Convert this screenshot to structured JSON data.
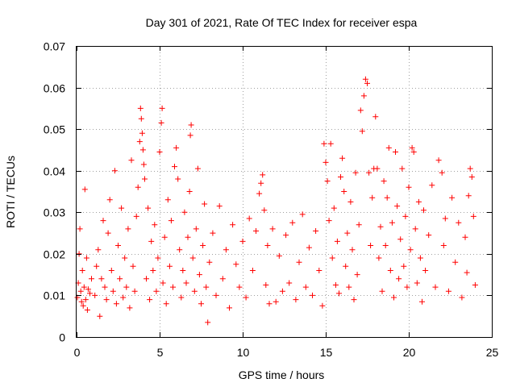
{
  "chart_data": {
    "type": "scatter",
    "title": "Day 301 of 2021, Rate Of TEC Index for receiver espa",
    "xlabel": "GPS time / hours",
    "ylabel": "ROTI / TECUs",
    "xlim": [
      0,
      25
    ],
    "ylim": [
      0,
      0.07
    ],
    "x_ticks": [
      0,
      5,
      10,
      15,
      20,
      25
    ],
    "x_tick_labels": [
      "0",
      "5",
      "10",
      "15",
      "20",
      "25"
    ],
    "y_ticks": [
      0,
      0.01,
      0.02,
      0.03,
      0.04,
      0.05,
      0.06,
      0.07
    ],
    "y_tick_labels": [
      "0",
      "0.01",
      "0.02",
      "0.03",
      "0.04",
      "0.05",
      "0.06",
      "0.07"
    ],
    "grid": true,
    "marker": "+",
    "series": [
      {
        "name": "ROTI",
        "color": "#ff0000",
        "points": [
          [
            0.05,
            0.0095
          ],
          [
            0.1,
            0.013
          ],
          [
            0.15,
            0.02
          ],
          [
            0.2,
            0.026
          ],
          [
            0.25,
            0.011
          ],
          [
            0.3,
            0.0085
          ],
          [
            0.35,
            0.016
          ],
          [
            0.4,
            0.0075
          ],
          [
            0.45,
            0.012
          ],
          [
            0.5,
            0.0355
          ],
          [
            0.55,
            0.009
          ],
          [
            0.6,
            0.019
          ],
          [
            0.65,
            0.0065
          ],
          [
            0.7,
            0.0115
          ],
          [
            0.8,
            0.0105
          ],
          [
            0.9,
            0.014
          ],
          [
            1.1,
            0.01
          ],
          [
            1.2,
            0.017
          ],
          [
            1.3,
            0.021
          ],
          [
            1.4,
            0.005
          ],
          [
            1.5,
            0.014
          ],
          [
            1.6,
            0.028
          ],
          [
            1.7,
            0.012
          ],
          [
            1.8,
            0.009
          ],
          [
            1.9,
            0.025
          ],
          [
            2.0,
            0.033
          ],
          [
            2.1,
            0.016
          ],
          [
            2.2,
            0.011
          ],
          [
            2.3,
            0.04
          ],
          [
            2.4,
            0.008
          ],
          [
            2.5,
            0.022
          ],
          [
            2.6,
            0.014
          ],
          [
            2.7,
            0.031
          ],
          [
            2.8,
            0.0095
          ],
          [
            2.9,
            0.019
          ],
          [
            3.0,
            0.012
          ],
          [
            3.1,
            0.026
          ],
          [
            3.2,
            0.007
          ],
          [
            3.3,
            0.0425
          ],
          [
            3.4,
            0.017
          ],
          [
            3.5,
            0.011
          ],
          [
            3.6,
            0.029
          ],
          [
            3.7,
            0.036
          ],
          [
            3.8,
            0.047
          ],
          [
            3.85,
            0.055
          ],
          [
            3.9,
            0.0525
          ],
          [
            3.95,
            0.049
          ],
          [
            4.0,
            0.045
          ],
          [
            4.05,
            0.0415
          ],
          [
            4.1,
            0.038
          ],
          [
            4.2,
            0.014
          ],
          [
            4.3,
            0.031
          ],
          [
            4.4,
            0.009
          ],
          [
            4.5,
            0.023
          ],
          [
            4.6,
            0.016
          ],
          [
            4.7,
            0.027
          ],
          [
            4.8,
            0.011
          ],
          [
            4.9,
            0.019
          ],
          [
            5.0,
            0.0445
          ],
          [
            5.1,
            0.0515
          ],
          [
            5.15,
            0.055
          ],
          [
            5.2,
            0.013
          ],
          [
            5.3,
            0.024
          ],
          [
            5.4,
            0.008
          ],
          [
            5.5,
            0.033
          ],
          [
            5.6,
            0.017
          ],
          [
            5.7,
            0.028
          ],
          [
            5.8,
            0.012
          ],
          [
            5.9,
            0.041
          ],
          [
            6.0,
            0.0455
          ],
          [
            6.1,
            0.038
          ],
          [
            6.2,
            0.021
          ],
          [
            6.3,
            0.0095
          ],
          [
            6.4,
            0.016
          ],
          [
            6.5,
            0.03
          ],
          [
            6.6,
            0.013
          ],
          [
            6.7,
            0.024
          ],
          [
            6.8,
            0.035
          ],
          [
            6.85,
            0.0485
          ],
          [
            6.9,
            0.051
          ],
          [
            7.0,
            0.019
          ],
          [
            7.1,
            0.011
          ],
          [
            7.2,
            0.026
          ],
          [
            7.3,
            0.0405
          ],
          [
            7.4,
            0.015
          ],
          [
            7.5,
            0.008
          ],
          [
            7.6,
            0.022
          ],
          [
            7.7,
            0.032
          ],
          [
            7.8,
            0.012
          ],
          [
            7.9,
            0.0035
          ],
          [
            8.0,
            0.018
          ],
          [
            8.2,
            0.025
          ],
          [
            8.4,
            0.01
          ],
          [
            8.6,
            0.0315
          ],
          [
            8.8,
            0.014
          ],
          [
            9.0,
            0.021
          ],
          [
            9.2,
            0.007
          ],
          [
            9.4,
            0.027
          ],
          [
            9.6,
            0.0175
          ],
          [
            9.8,
            0.012
          ],
          [
            10.0,
            0.023
          ],
          [
            10.2,
            0.0095
          ],
          [
            10.4,
            0.0285
          ],
          [
            10.6,
            0.016
          ],
          [
            10.8,
            0.0255
          ],
          [
            11.0,
            0.0345
          ],
          [
            11.1,
            0.037
          ],
          [
            11.2,
            0.039
          ],
          [
            11.3,
            0.0305
          ],
          [
            11.4,
            0.0125
          ],
          [
            11.5,
            0.022
          ],
          [
            11.6,
            0.008
          ],
          [
            11.8,
            0.026
          ],
          [
            12.0,
            0.0085
          ],
          [
            12.2,
            0.0195
          ],
          [
            12.4,
            0.011
          ],
          [
            12.6,
            0.0245
          ],
          [
            12.8,
            0.013
          ],
          [
            13.0,
            0.0275
          ],
          [
            13.2,
            0.009
          ],
          [
            13.4,
            0.018
          ],
          [
            13.6,
            0.0295
          ],
          [
            13.8,
            0.012
          ],
          [
            14.0,
            0.0215
          ],
          [
            14.2,
            0.01
          ],
          [
            14.4,
            0.0255
          ],
          [
            14.6,
            0.016
          ],
          [
            14.8,
            0.0075
          ],
          [
            14.9,
            0.0465
          ],
          [
            15.0,
            0.042
          ],
          [
            15.1,
            0.0375
          ],
          [
            15.2,
            0.028
          ],
          [
            15.3,
            0.0465
          ],
          [
            15.4,
            0.019
          ],
          [
            15.5,
            0.031
          ],
          [
            15.6,
            0.0125
          ],
          [
            15.7,
            0.023
          ],
          [
            15.8,
            0.0105
          ],
          [
            15.9,
            0.0385
          ],
          [
            16.0,
            0.043
          ],
          [
            16.1,
            0.035
          ],
          [
            16.2,
            0.017
          ],
          [
            16.3,
            0.025
          ],
          [
            16.4,
            0.012
          ],
          [
            16.5,
            0.0325
          ],
          [
            16.6,
            0.021
          ],
          [
            16.7,
            0.009
          ],
          [
            16.8,
            0.0395
          ],
          [
            16.9,
            0.015
          ],
          [
            17.0,
            0.027
          ],
          [
            17.1,
            0.0545
          ],
          [
            17.2,
            0.0495
          ],
          [
            17.3,
            0.058
          ],
          [
            17.4,
            0.062
          ],
          [
            17.5,
            0.061
          ],
          [
            17.6,
            0.0395
          ],
          [
            17.7,
            0.022
          ],
          [
            17.8,
            0.0335
          ],
          [
            17.9,
            0.0405
          ],
          [
            18.0,
            0.053
          ],
          [
            18.1,
            0.0405
          ],
          [
            18.2,
            0.019
          ],
          [
            18.3,
            0.0265
          ],
          [
            18.4,
            0.011
          ],
          [
            18.5,
            0.0375
          ],
          [
            18.6,
            0.022
          ],
          [
            18.7,
            0.0335
          ],
          [
            18.8,
            0.0455
          ],
          [
            18.9,
            0.016
          ],
          [
            19.0,
            0.0275
          ],
          [
            19.1,
            0.0095
          ],
          [
            19.2,
            0.0445
          ],
          [
            19.3,
            0.0315
          ],
          [
            19.4,
            0.014
          ],
          [
            19.5,
            0.0235
          ],
          [
            19.6,
            0.0405
          ],
          [
            19.7,
            0.017
          ],
          [
            19.8,
            0.029
          ],
          [
            19.9,
            0.012
          ],
          [
            20.0,
            0.036
          ],
          [
            20.1,
            0.021
          ],
          [
            20.2,
            0.0455
          ],
          [
            20.3,
            0.0445
          ],
          [
            20.4,
            0.026
          ],
          [
            20.5,
            0.013
          ],
          [
            20.6,
            0.0325
          ],
          [
            20.7,
            0.019
          ],
          [
            20.8,
            0.0085
          ],
          [
            20.9,
            0.0305
          ],
          [
            21.0,
            0.016
          ],
          [
            21.2,
            0.0245
          ],
          [
            21.4,
            0.0365
          ],
          [
            21.6,
            0.012
          ],
          [
            21.8,
            0.0425
          ],
          [
            22.0,
            0.0395
          ],
          [
            22.1,
            0.022
          ],
          [
            22.2,
            0.0285
          ],
          [
            22.4,
            0.011
          ],
          [
            22.6,
            0.0335
          ],
          [
            22.8,
            0.018
          ],
          [
            23.0,
            0.0275
          ],
          [
            23.2,
            0.0095
          ],
          [
            23.4,
            0.024
          ],
          [
            23.5,
            0.0155
          ],
          [
            23.6,
            0.034
          ],
          [
            23.7,
            0.0405
          ],
          [
            23.8,
            0.0385
          ],
          [
            23.9,
            0.029
          ],
          [
            24.0,
            0.0125
          ]
        ]
      }
    ]
  }
}
